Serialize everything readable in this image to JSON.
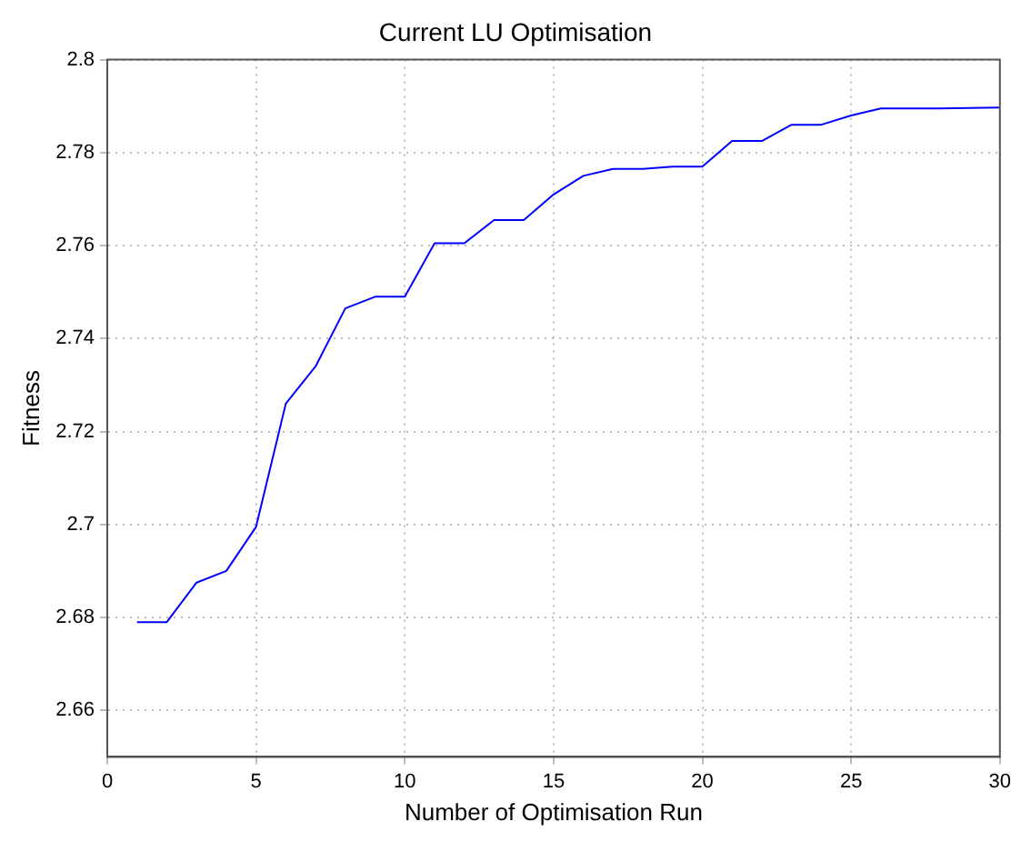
{
  "chart_data": {
    "type": "line",
    "title": "Current LU Optimisation",
    "xlabel": "Number of Optimisation Run",
    "ylabel": "Fitness",
    "x": [
      1,
      2,
      3,
      4,
      5,
      6,
      7,
      8,
      9,
      10,
      11,
      12,
      13,
      14,
      15,
      16,
      17,
      18,
      19,
      20,
      21,
      22,
      23,
      24,
      25,
      26,
      27,
      28,
      29,
      30
    ],
    "series": [
      {
        "color": "#0000ff",
        "values": [
          2.679,
          2.679,
          2.6875,
          2.69,
          2.6995,
          2.726,
          2.734,
          2.7465,
          2.749,
          2.749,
          2.7605,
          2.7605,
          2.7655,
          2.7655,
          2.771,
          2.775,
          2.7765,
          2.7765,
          2.777,
          2.777,
          2.7825,
          2.7825,
          2.786,
          2.786,
          2.788,
          2.7895,
          2.7895,
          2.7895,
          2.7896,
          2.7897
        ]
      }
    ],
    "xlim": [
      0,
      30
    ],
    "xticks": [
      0,
      5,
      10,
      15,
      20,
      25,
      30
    ],
    "ylim": [
      2.65,
      2.8
    ],
    "yticks": [
      2.66,
      2.68,
      2.7,
      2.72,
      2.74,
      2.76,
      2.78,
      2.8
    ],
    "grid": true,
    "legend": false,
    "marker": "none",
    "line_style": "solid"
  }
}
